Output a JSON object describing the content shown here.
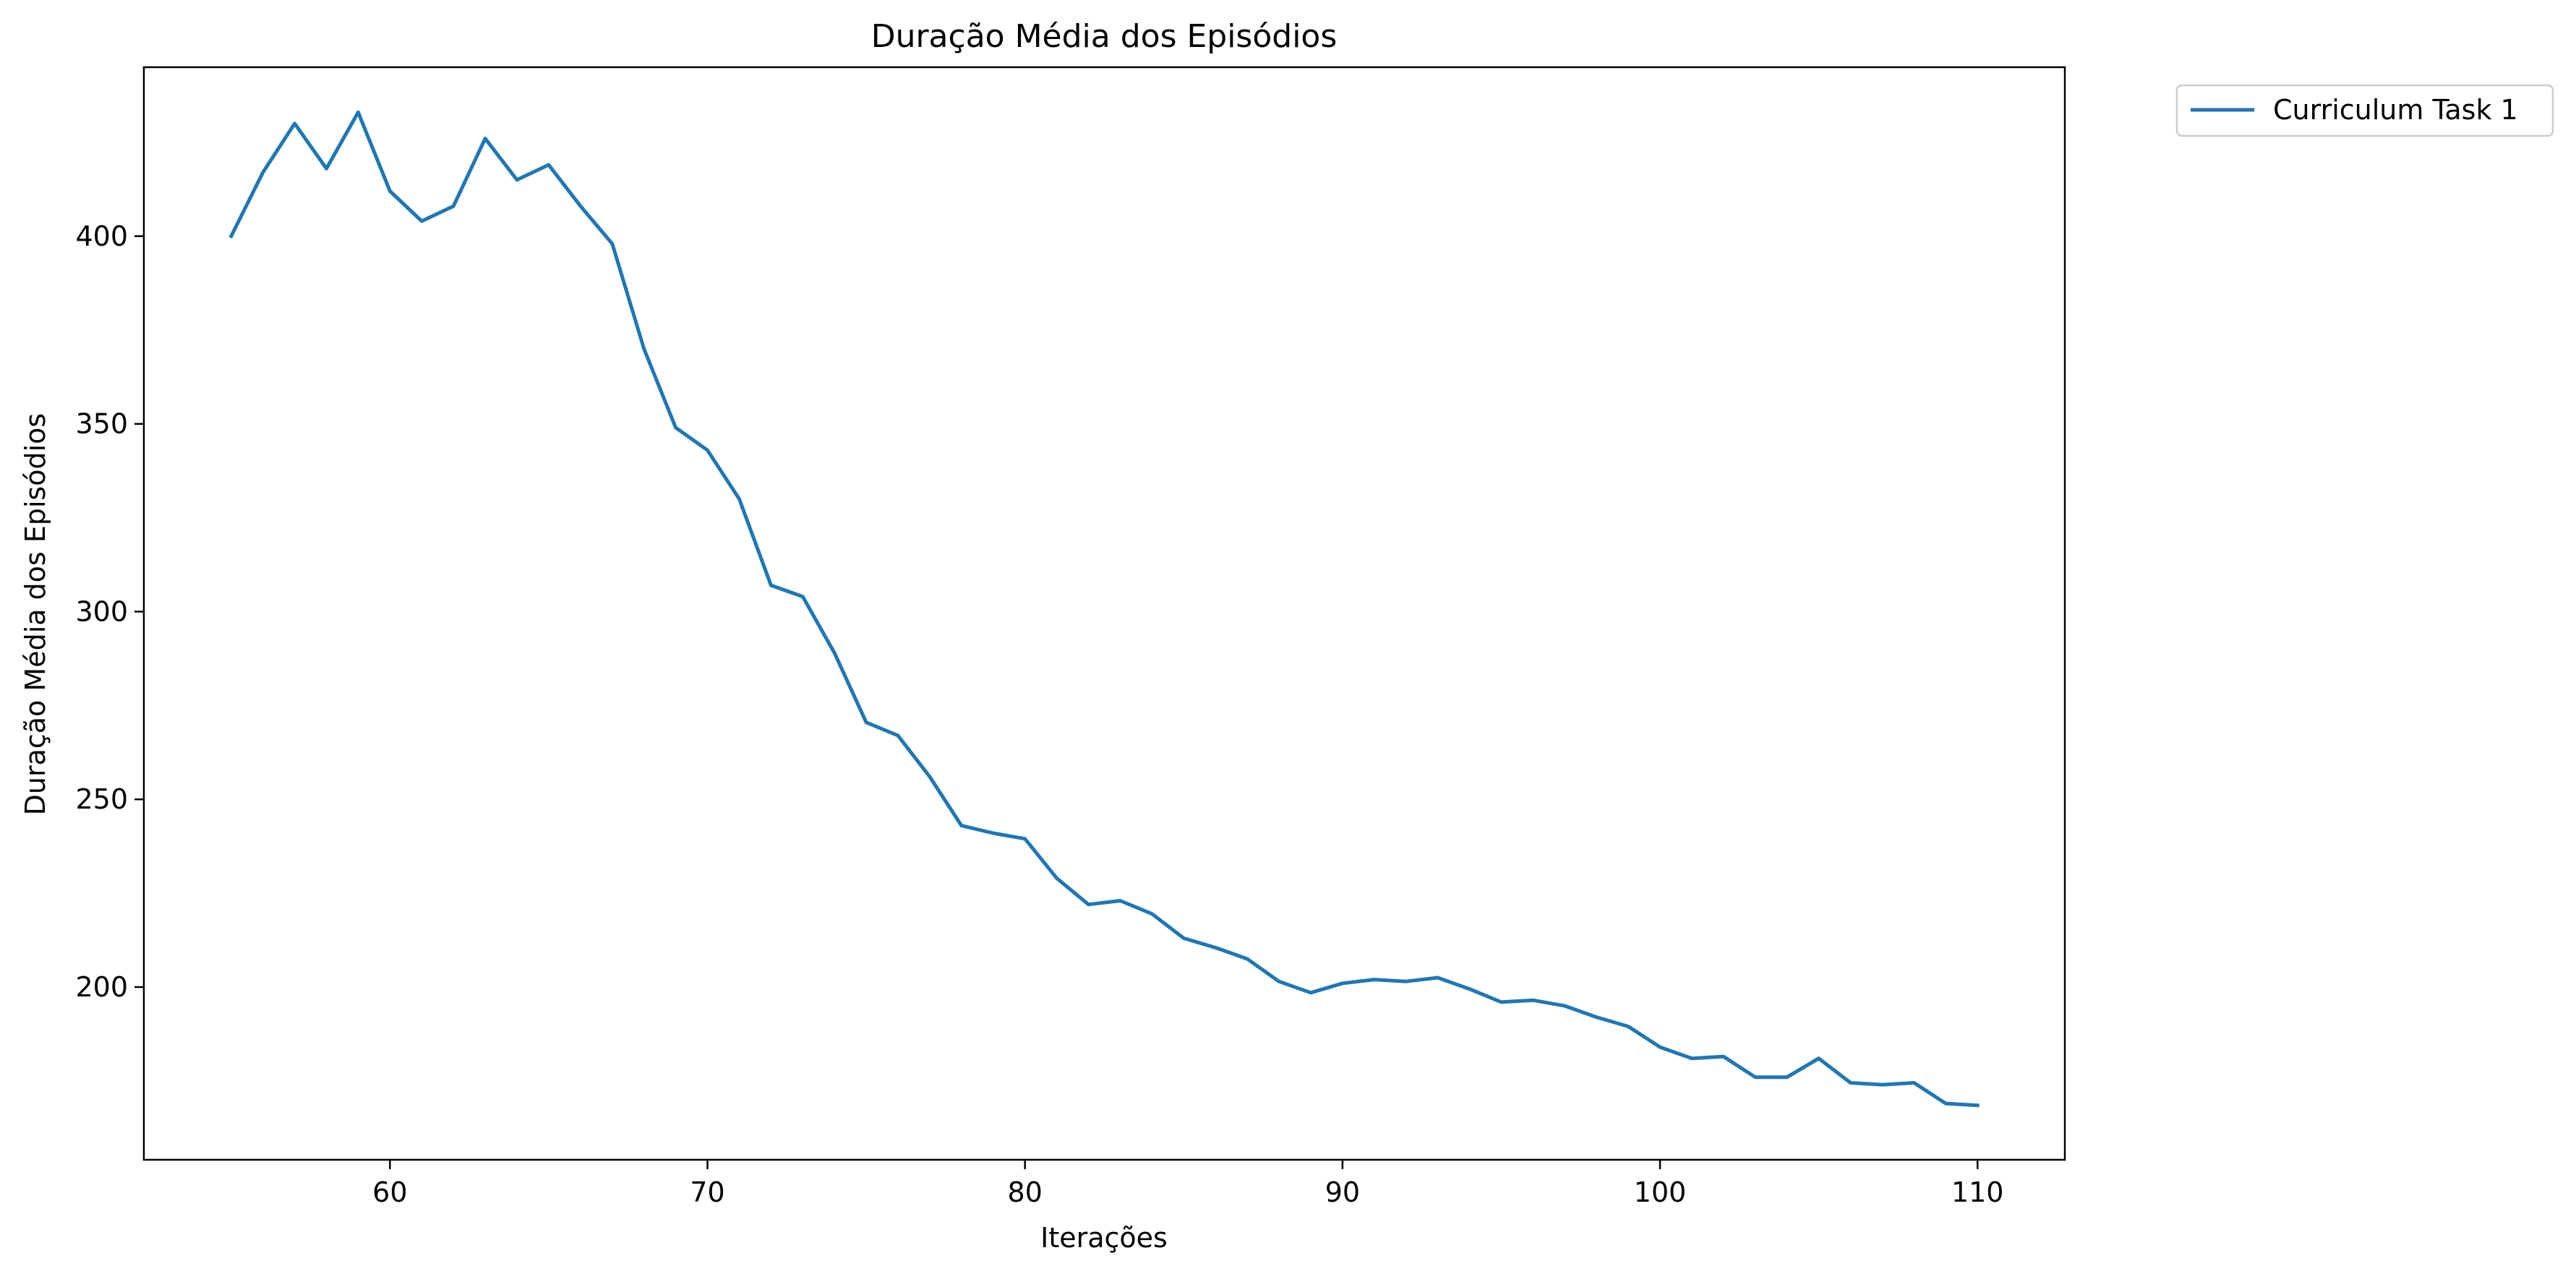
{
  "chart_data": {
    "type": "line",
    "title": "Duração Média dos Episódios",
    "xlabel": "Iterações",
    "ylabel": "Duração Média dos Episódios",
    "xlim": [
      52.25,
      112.75
    ],
    "ylim": [
      154,
      445
    ],
    "xticks": [
      60,
      70,
      80,
      90,
      100,
      110
    ],
    "yticks": [
      200,
      250,
      300,
      350,
      400
    ],
    "grid": false,
    "legend_position": "outside top-right",
    "series": [
      {
        "name": "Curriculum Task 1",
        "color": "#1f77b4",
        "x": [
          55,
          56,
          57,
          58,
          59,
          60,
          61,
          62,
          63,
          64,
          65,
          66,
          67,
          68,
          69,
          70,
          71,
          72,
          73,
          74,
          75,
          76,
          77,
          78,
          79,
          80,
          81,
          82,
          83,
          84,
          85,
          86,
          87,
          88,
          89,
          90,
          91,
          92,
          93,
          94,
          95,
          96,
          97,
          98,
          99,
          100,
          101,
          102,
          103,
          104,
          105,
          106,
          107,
          108,
          109,
          110
        ],
        "y": [
          400,
          417,
          430,
          418,
          433,
          412,
          404,
          408,
          426,
          415,
          419,
          408,
          398,
          370,
          349,
          343,
          330,
          307,
          304,
          289,
          270.5,
          267,
          256,
          243,
          241,
          239.5,
          229,
          222,
          223,
          219.5,
          213,
          210.5,
          207.5,
          201.5,
          198.5,
          201,
          202,
          201.5,
          202.5,
          199.5,
          196,
          196.5,
          195,
          192,
          189.5,
          184,
          181,
          181.5,
          176,
          176,
          181,
          174.5,
          174,
          174.5,
          169,
          168.5
        ]
      }
    ]
  }
}
